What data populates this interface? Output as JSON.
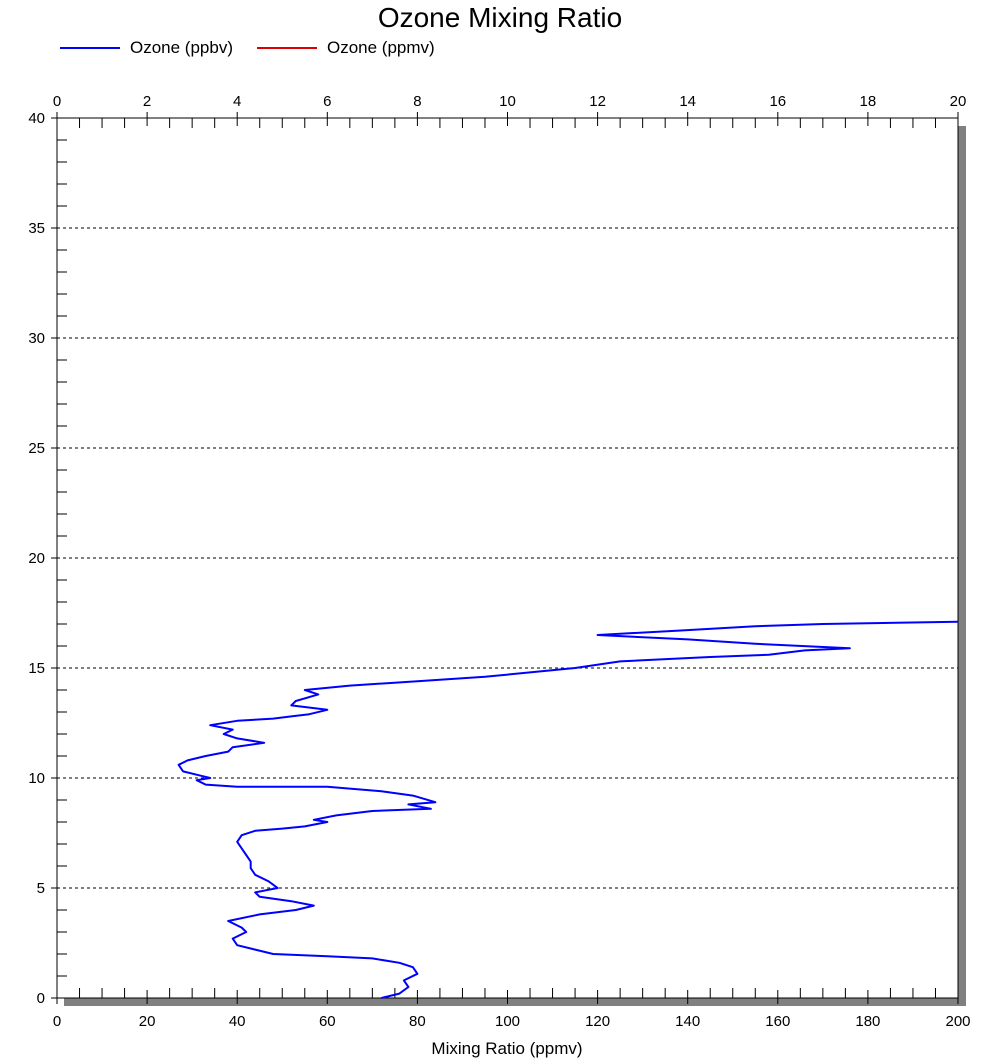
{
  "chart_data": {
    "type": "line",
    "title": "Ozone Mixing Ratio",
    "xlabel": "Mixing Ratio (ppmv)",
    "ylabel": "",
    "xlim": [
      0,
      200
    ],
    "x2lim": [
      0,
      20
    ],
    "ylim": [
      0,
      40
    ],
    "x_ticks": [
      "0",
      "20",
      "40",
      "60",
      "80",
      "100",
      "120",
      "140",
      "160",
      "180",
      "200"
    ],
    "x2_ticks": [
      "0",
      "2",
      "4",
      "6",
      "8",
      "10",
      "12",
      "14",
      "16",
      "18",
      "20"
    ],
    "y_ticks": [
      "0",
      "5",
      "10",
      "15",
      "20",
      "25",
      "30",
      "35",
      "40"
    ],
    "grid": "horizontal dashed",
    "legend_position": "top-left",
    "series": [
      {
        "name": "Ozone (ppbv)",
        "color": "#0000ff",
        "axis": "bottom",
        "points": [
          [
            72,
            0
          ],
          [
            76,
            0.2
          ],
          [
            78,
            0.5
          ],
          [
            77,
            0.8
          ],
          [
            80,
            1.1
          ],
          [
            79,
            1.4
          ],
          [
            76,
            1.6
          ],
          [
            70,
            1.8
          ],
          [
            60,
            1.9
          ],
          [
            48,
            2.0
          ],
          [
            44,
            2.2
          ],
          [
            40,
            2.4
          ],
          [
            39,
            2.7
          ],
          [
            42,
            3.0
          ],
          [
            41,
            3.2
          ],
          [
            38,
            3.5
          ],
          [
            45,
            3.8
          ],
          [
            53,
            4.0
          ],
          [
            57,
            4.2
          ],
          [
            52,
            4.4
          ],
          [
            45,
            4.6
          ],
          [
            44,
            4.8
          ],
          [
            49,
            5.0
          ],
          [
            47,
            5.3
          ],
          [
            44,
            5.6
          ],
          [
            43,
            5.9
          ],
          [
            43,
            6.2
          ],
          [
            42,
            6.5
          ],
          [
            41,
            6.8
          ],
          [
            40,
            7.1
          ],
          [
            41,
            7.4
          ],
          [
            44,
            7.6
          ],
          [
            50,
            7.7
          ],
          [
            55,
            7.8
          ],
          [
            60,
            8.0
          ],
          [
            57,
            8.1
          ],
          [
            62,
            8.3
          ],
          [
            70,
            8.5
          ],
          [
            83,
            8.6
          ],
          [
            78,
            8.8
          ],
          [
            84,
            8.9
          ],
          [
            79,
            9.2
          ],
          [
            72,
            9.4
          ],
          [
            60,
            9.6
          ],
          [
            40,
            9.6
          ],
          [
            33,
            9.7
          ],
          [
            31,
            9.9
          ],
          [
            34,
            10.0
          ],
          [
            32,
            10.1
          ],
          [
            28,
            10.3
          ],
          [
            27,
            10.6
          ],
          [
            29,
            10.8
          ],
          [
            33,
            11.0
          ],
          [
            38,
            11.2
          ],
          [
            39,
            11.4
          ],
          [
            46,
            11.6
          ],
          [
            40,
            11.8
          ],
          [
            37,
            12.0
          ],
          [
            39,
            12.2
          ],
          [
            34,
            12.4
          ],
          [
            40,
            12.6
          ],
          [
            48,
            12.7
          ],
          [
            52,
            12.8
          ],
          [
            56,
            12.9
          ],
          [
            60,
            13.1
          ],
          [
            52,
            13.3
          ],
          [
            53,
            13.5
          ],
          [
            58,
            13.8
          ],
          [
            55,
            14.0
          ],
          [
            65,
            14.2
          ],
          [
            80,
            14.4
          ],
          [
            95,
            14.6
          ],
          [
            105,
            14.8
          ],
          [
            115,
            15.0
          ],
          [
            125,
            15.3
          ],
          [
            145,
            15.5
          ],
          [
            158,
            15.6
          ],
          [
            166,
            15.8
          ],
          [
            176,
            15.9
          ],
          [
            155,
            16.1
          ],
          [
            140,
            16.3
          ],
          [
            120,
            16.5
          ],
          [
            138,
            16.7
          ],
          [
            155,
            16.9
          ],
          [
            170,
            17.0
          ],
          [
            200,
            17.1
          ]
        ]
      },
      {
        "name": "Ozone (ppmv)",
        "color": "#dd0000",
        "axis": "top",
        "points": []
      }
    ]
  }
}
